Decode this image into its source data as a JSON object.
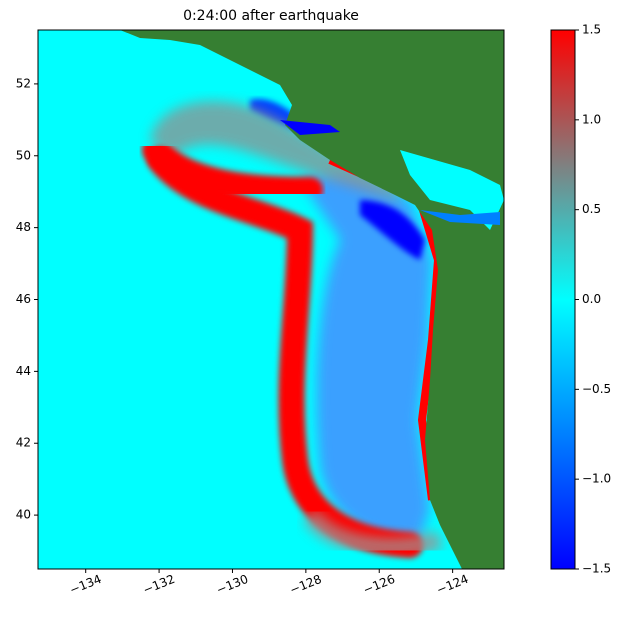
{
  "chart_data": {
    "type": "heatmap",
    "title": "0:24:00 after earthquake",
    "xlim": [
      -135.3,
      -122.6
    ],
    "xticks": [
      {
        "value": -134,
        "label": "−134"
      },
      {
        "value": -132,
        "label": "−132"
      },
      {
        "value": -130,
        "label": "−130"
      },
      {
        "value": -128,
        "label": "−128"
      },
      {
        "value": -126,
        "label": "−126"
      },
      {
        "value": -124,
        "label": "−124"
      }
    ],
    "ylim": [
      38.5,
      53.5
    ],
    "yticks": [
      40,
      42,
      44,
      46,
      48,
      50,
      52
    ],
    "clim": [
      -1.5,
      1.5
    ],
    "cticks": [
      {
        "value": -1.5,
        "label": "−1.5"
      },
      {
        "value": -1.0,
        "label": "−1.0"
      },
      {
        "value": -0.5,
        "label": "−0.5"
      },
      {
        "value": 0,
        "label": "0.0"
      },
      0.5,
      {
        "value": 1.0,
        "label": "1.0"
      },
      1.5
    ],
    "colormap": [
      "#0000ff",
      "#0080ff",
      "#00ffff",
      "#808080",
      "#ff0000"
    ]
  }
}
